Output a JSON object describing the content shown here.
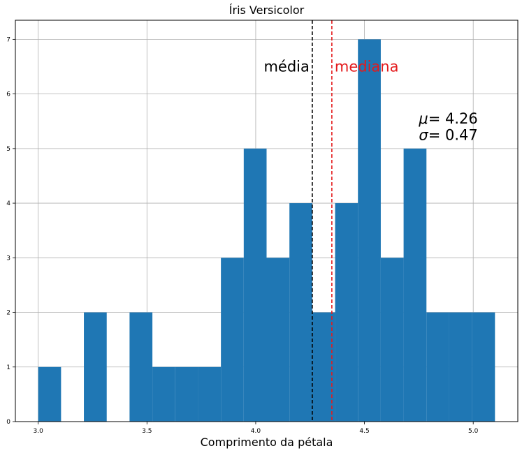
{
  "chart_data": {
    "type": "bar",
    "title": "Íris Versicolor",
    "xlabel": "Comprimento da pétala",
    "ylabel": "",
    "xlim": [
      2.895,
      5.205
    ],
    "ylim": [
      0,
      7.35
    ],
    "x_ticks": [
      3.0,
      3.5,
      4.0,
      4.5,
      5.0
    ],
    "x_tick_labels": [
      "3.0",
      "3.5",
      "4.0",
      "4.5",
      "5.0"
    ],
    "y_ticks": [
      0,
      1,
      2,
      3,
      4,
      5,
      6,
      7
    ],
    "y_tick_labels": [
      "0",
      "1",
      "2",
      "3",
      "4",
      "5",
      "6",
      "7"
    ],
    "grid": true,
    "bar_color": "#1f77b4",
    "bins": [
      {
        "x0": 3.0,
        "x1": 3.105,
        "count": 1
      },
      {
        "x0": 3.105,
        "x1": 3.21,
        "count": 0
      },
      {
        "x0": 3.21,
        "x1": 3.315,
        "count": 2
      },
      {
        "x0": 3.315,
        "x1": 3.42,
        "count": 0
      },
      {
        "x0": 3.42,
        "x1": 3.525,
        "count": 2
      },
      {
        "x0": 3.525,
        "x1": 3.63,
        "count": 1
      },
      {
        "x0": 3.63,
        "x1": 3.735,
        "count": 1
      },
      {
        "x0": 3.735,
        "x1": 3.84,
        "count": 1
      },
      {
        "x0": 3.84,
        "x1": 3.945,
        "count": 3
      },
      {
        "x0": 3.945,
        "x1": 4.05,
        "count": 5
      },
      {
        "x0": 4.05,
        "x1": 4.155,
        "count": 3
      },
      {
        "x0": 4.155,
        "x1": 4.26,
        "count": 4
      },
      {
        "x0": 4.26,
        "x1": 4.365,
        "count": 2
      },
      {
        "x0": 4.365,
        "x1": 4.47,
        "count": 4
      },
      {
        "x0": 4.47,
        "x1": 4.575,
        "count": 7
      },
      {
        "x0": 4.575,
        "x1": 4.68,
        "count": 3
      },
      {
        "x0": 4.68,
        "x1": 4.785,
        "count": 5
      },
      {
        "x0": 4.785,
        "x1": 4.89,
        "count": 2
      },
      {
        "x0": 4.89,
        "x1": 4.995,
        "count": 2
      },
      {
        "x0": 4.995,
        "x1": 5.1,
        "count": 2
      }
    ],
    "vlines": [
      {
        "name": "média",
        "x": 4.26,
        "color": "#000000",
        "label": "média",
        "label_align": "right"
      },
      {
        "name": "mediana",
        "x": 4.35,
        "color": "#e41a1c",
        "label": "mediana",
        "label_align": "left"
      }
    ],
    "label_y": 6.5,
    "stats": {
      "mu_symbol": "μ",
      "mu_value": "= 4.26",
      "sigma_symbol": "σ",
      "sigma_value": "= 0.47",
      "x": 4.75,
      "mu_y": 5.55,
      "sigma_y": 5.25
    }
  }
}
